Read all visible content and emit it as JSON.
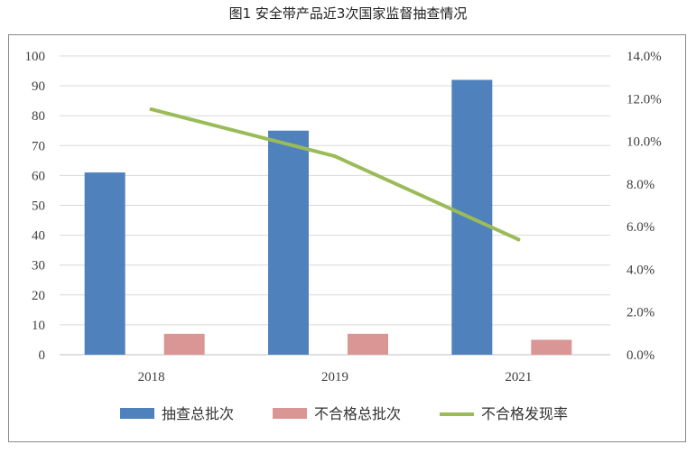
{
  "chart_data": {
    "type": "bar",
    "title": "图1 安全带产品近3次国家监督抽查情况",
    "categories": [
      "2018",
      "2019",
      "2021"
    ],
    "series": [
      {
        "name": "抽查总批次",
        "type": "bar",
        "axis": "left",
        "color": "#4f81bd",
        "values": [
          61,
          75,
          92
        ]
      },
      {
        "name": "不合格总批次",
        "type": "bar",
        "axis": "left",
        "color": "#d99694",
        "values": [
          7,
          7,
          5
        ]
      },
      {
        "name": "不合格发现率",
        "type": "line",
        "axis": "right",
        "color": "#9bbb59",
        "values": [
          11.5,
          9.3,
          5.4
        ],
        "unit": "%"
      }
    ],
    "y_left": {
      "min": 0,
      "max": 100,
      "ticks": [
        "0",
        "10",
        "20",
        "30",
        "40",
        "50",
        "60",
        "70",
        "80",
        "90",
        "100"
      ]
    },
    "y_right": {
      "min": 0,
      "max": 14,
      "ticks": [
        "0.0%",
        "2.0%",
        "4.0%",
        "6.0%",
        "8.0%",
        "10.0%",
        "12.0%",
        "14.0%"
      ]
    },
    "grid": true,
    "legend_position": "bottom"
  }
}
